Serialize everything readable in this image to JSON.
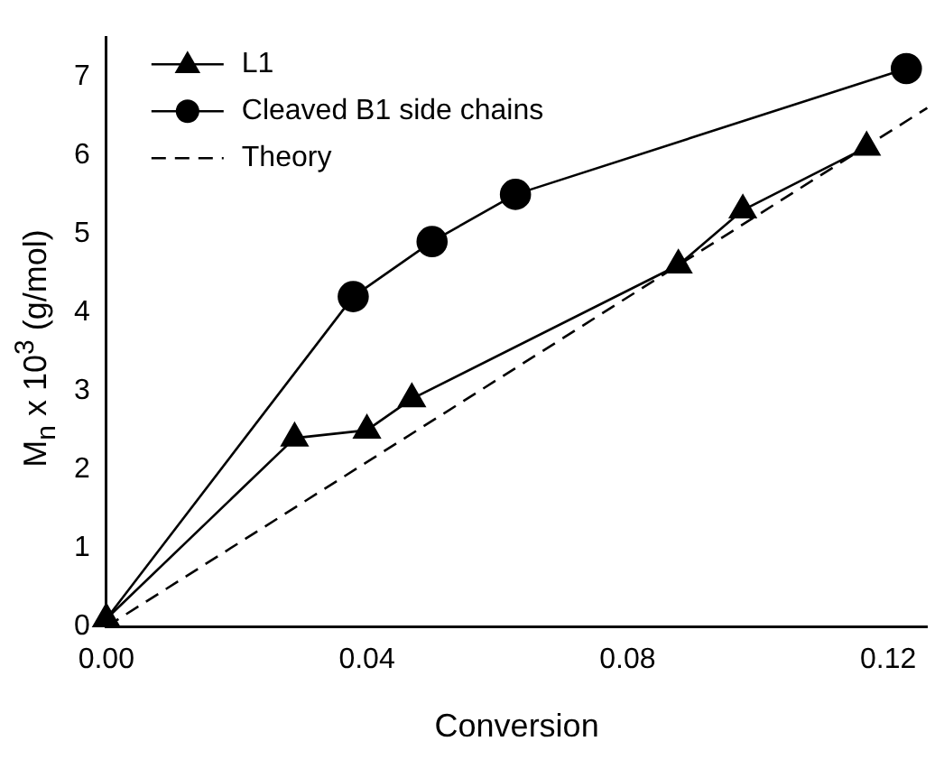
{
  "chart_data": {
    "type": "line",
    "xlabel": "Conversion",
    "ylabel": "$_{}$M$_{n}$ x 10$^{3}$ (g/mol)",
    "xlim": [
      0,
      0.126
    ],
    "xticks": [
      {
        "value": 0,
        "label": "0.00"
      },
      0.04,
      0.08,
      0.12
    ],
    "ylim": [
      0,
      7.5
    ],
    "yticks": [
      0,
      1,
      2,
      3,
      4,
      5,
      6,
      7
    ],
    "grid": false,
    "legend": "top left",
    "series": [
      {
        "name": "L1",
        "color": "#000000",
        "marker": "triangle",
        "line_style": "solid",
        "x": [
          0,
          0.0289,
          0.04,
          0.0469,
          0.0878,
          0.0977,
          0.1167
        ],
        "values": [
          0.1,
          2.4,
          2.5,
          2.9,
          4.6,
          5.3,
          6.1
        ]
      },
      {
        "name": "Cleaved B1 side chains",
        "color": "#000000",
        "marker": "circle",
        "line_style": "solid",
        "x": [
          0,
          0.0379,
          0.05,
          0.0628,
          0.1228
        ],
        "values": [
          0.1,
          4.2,
          4.9,
          5.5,
          7.1
        ]
      },
      {
        "name": "Theory",
        "color": "#000000",
        "marker": "none",
        "line_style": "dashed",
        "x": [
          0,
          0.126
        ],
        "values": [
          0,
          6.6
        ]
      }
    ]
  }
}
